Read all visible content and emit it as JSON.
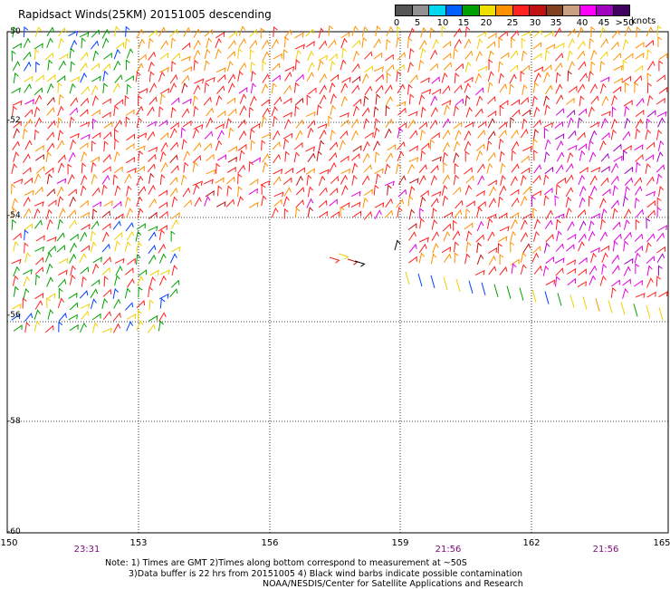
{
  "title": "Rapidsact Winds(25KM) 20151005 descending",
  "legend": {
    "bins": [
      {
        "label": "0",
        "color": "#555555"
      },
      {
        "label": "5",
        "color": "#909090"
      },
      {
        "label": "10",
        "color": "#00d8f0"
      },
      {
        "label": "15",
        "color": "#0060ff"
      },
      {
        "label": "20",
        "color": "#00a000"
      },
      {
        "label": "25",
        "color": "#f0e000"
      },
      {
        "label": "30",
        "color": "#ff9000"
      },
      {
        "label": "35",
        "color": "#ff2020"
      },
      {
        "label": "40",
        "color": "#c01010"
      },
      {
        "label": "45",
        "color": "#804020"
      },
      {
        "label": "",
        "color": "#c8a080"
      },
      {
        "label": "",
        "color": "#ff00ff"
      },
      {
        "label": "",
        "color": "#a000c0"
      },
      {
        "label": "",
        "color": "#400060"
      }
    ],
    "ticks": [
      "0",
      "5",
      "10",
      "15",
      "20",
      "25",
      "30",
      "35",
      "40",
      "45",
      ">50"
    ],
    "units": "knots"
  },
  "map": {
    "lat_labels": [
      "-50",
      "-52",
      "-54",
      "-56",
      "-58",
      "-60"
    ],
    "lon_labels": [
      "150",
      "153",
      "156",
      "159",
      "162",
      "165"
    ],
    "time_labels": [
      "23:31",
      "21:56",
      "21:56"
    ]
  },
  "notes": {
    "line1": "Note: 1) Times are GMT 2)Times along bottom correspond to measurement at ~50S",
    "line2": "3)Data buffer is 22 hrs from 20151005 4) Black wind barbs indicate possible contamination",
    "line3": "NOAA/NESDIS/Center for Satellite Applications and Research"
  }
}
